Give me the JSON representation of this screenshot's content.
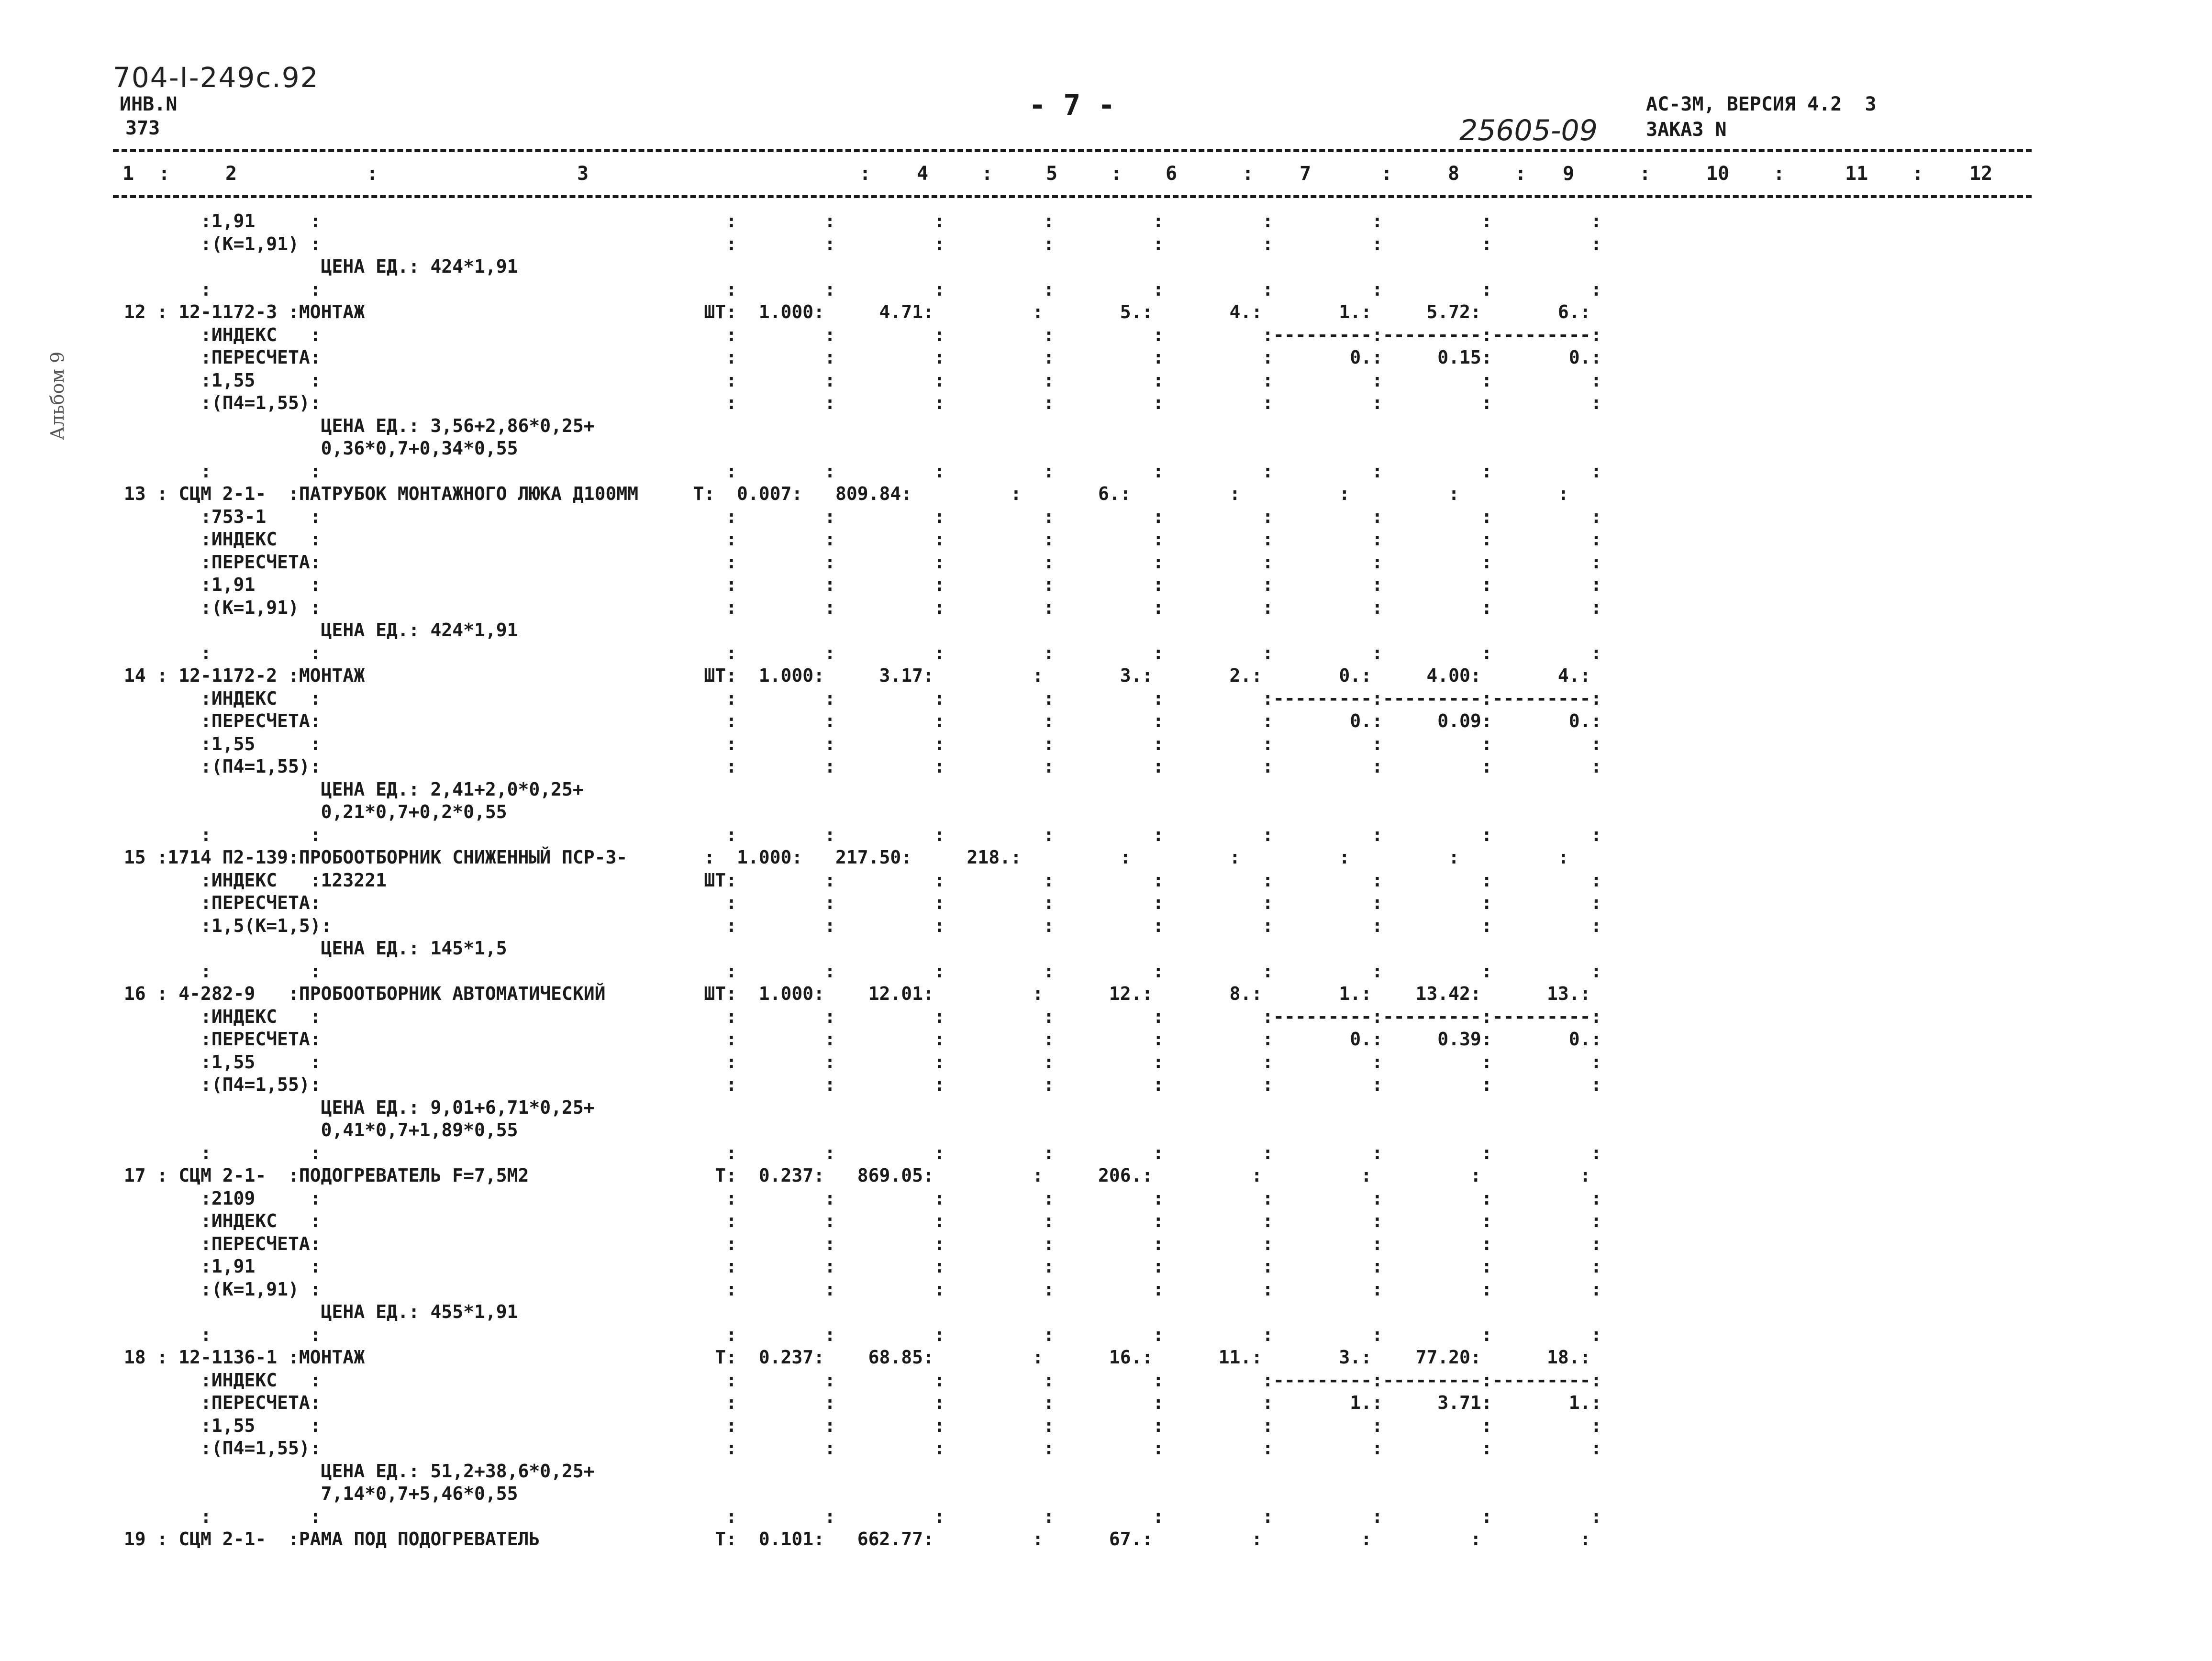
{
  "header": {
    "code": "704-I-249c.92",
    "inv_label": "ИНВ.N",
    "inv_no": "373",
    "page": "- 7 -",
    "system": "АС-3М, ВЕРСИЯ 4.2  3",
    "order_label": "ЗАКАЗ N",
    "order_no": "25605-09",
    "stamp": "Альбом 9"
  },
  "columns": [
    "1",
    ":",
    "2",
    ":",
    "3",
    ":",
    "4",
    ":",
    "5",
    ":",
    "6",
    ":",
    "7",
    ":",
    "8",
    ":",
    "9",
    ":",
    "10",
    ":",
    "11",
    ":",
    "12"
  ],
  "lines": [
    "        :1,91     :                                     :        :         :         :         :         :         :         :         :",
    "        :(К=1,91) :                                     :        :         :         :         :         :         :         :         :",
    "                   ЦЕНА ЕД.: 424*1,91",
    "        :         :                                     :        :         :         :         :         :         :         :         :",
    " 12 : 12-1172-3 :МОНТАЖ                               ШТ:  1.000:     4.71:         :       5.:       4.:       1.:     5.72:       6.:",
    "        :ИНДЕКС   :                                     :        :         :         :         :         :---------:---------:---------:",
    "        :ПЕРЕСЧЕТА:                                     :        :         :         :         :         :       0.:     0.15:       0.:",
    "        :1,55     :                                     :        :         :         :         :         :         :         :         :",
    "        :(П4=1,55):                                     :        :         :         :         :         :         :         :         :",
    "                   ЦЕНА ЕД.: 3,56+2,86*0,25+",
    "                   0,36*0,7+0,34*0,55",
    "        :         :                                     :        :         :         :         :         :         :         :         :",
    " 13 : СЦМ 2-1-  :ПАТРУБОК МОНТАЖНОГО ЛЮКА Д100ММ     Т:  0.007:   809.84:         :       6.:         :         :         :         :",
    "        :753-1    :                                     :        :         :         :         :         :         :         :         :",
    "        :ИНДЕКС   :                                     :        :         :         :         :         :         :         :         :",
    "        :ПЕРЕСЧЕТА:                                     :        :         :         :         :         :         :         :         :",
    "        :1,91     :                                     :        :         :         :         :         :         :         :         :",
    "        :(К=1,91) :                                     :        :         :         :         :         :         :         :         :",
    "                   ЦЕНА ЕД.: 424*1,91",
    "        :         :                                     :        :         :         :         :         :         :         :         :",
    " 14 : 12-1172-2 :МОНТАЖ                               ШТ:  1.000:     3.17:         :       3.:       2.:       0.:     4.00:       4.:",
    "        :ИНДЕКС   :                                     :        :         :         :         :         :---------:---------:---------:",
    "        :ПЕРЕСЧЕТА:                                     :        :         :         :         :         :       0.:     0.09:       0.:",
    "        :1,55     :                                     :        :         :         :         :         :         :         :         :",
    "        :(П4=1,55):                                     :        :         :         :         :         :         :         :         :",
    "                   ЦЕНА ЕД.: 2,41+2,0*0,25+",
    "                   0,21*0,7+0,2*0,55",
    "        :         :                                     :        :         :         :         :         :         :         :         :",
    " 15 :1714 П2-139:ПРОБООТБОРНИК СНИЖЕННЫЙ ПСР-3-       :  1.000:   217.50:     218.:         :         :         :         :         :",
    "        :ИНДЕКС   :123221                             ШТ:        :         :         :         :         :         :         :         :",
    "        :ПЕРЕСЧЕТА:                                     :        :         :         :         :         :         :         :         :",
    "        :1,5(К=1,5):                                    :        :         :         :         :         :         :         :         :",
    "                   ЦЕНА ЕД.: 145*1,5",
    "        :         :                                     :        :         :         :         :         :         :         :         :",
    " 16 : 4-282-9   :ПРОБООТБОРНИК АВТОМАТИЧЕСКИЙ         ШТ:  1.000:    12.01:         :      12.:       8.:       1.:    13.42:      13.:",
    "        :ИНДЕКС   :                                     :        :         :         :         :         :---------:---------:---------:",
    "        :ПЕРЕСЧЕТА:                                     :        :         :         :         :         :       0.:     0.39:       0.:",
    "        :1,55     :                                     :        :         :         :         :         :         :         :         :",
    "        :(П4=1,55):                                     :        :         :         :         :         :         :         :         :",
    "                   ЦЕНА ЕД.: 9,01+6,71*0,25+",
    "                   0,41*0,7+1,89*0,55",
    "        :         :                                     :        :         :         :         :         :         :         :         :",
    " 17 : СЦМ 2-1-  :ПОДОГРЕВАТЕЛЬ F=7,5М2                 Т:  0.237:   869.05:         :     206.:         :         :         :         :",
    "        :2109     :                                     :        :         :         :         :         :         :         :         :",
    "        :ИНДЕКС   :                                     :        :         :         :         :         :         :         :         :",
    "        :ПЕРЕСЧЕТА:                                     :        :         :         :         :         :         :         :         :",
    "        :1,91     :                                     :        :         :         :         :         :         :         :         :",
    "        :(К=1,91) :                                     :        :         :         :         :         :         :         :         :",
    "                   ЦЕНА ЕД.: 455*1,91",
    "        :         :                                     :        :         :         :         :         :         :         :         :",
    " 18 : 12-1136-1 :МОНТАЖ                                Т:  0.237:    68.85:         :      16.:      11.:       3.:    77.20:      18.:",
    "        :ИНДЕКС   :                                     :        :         :         :         :         :---------:---------:---------:",
    "        :ПЕРЕСЧЕТА:                                     :        :         :         :         :         :       1.:     3.71:       1.:",
    "        :1,55     :                                     :        :         :         :         :         :         :         :         :",
    "        :(П4=1,55):                                     :        :         :         :         :         :         :         :         :",
    "                   ЦЕНА ЕД.: 51,2+38,6*0,25+",
    "                   7,14*0,7+5,46*0,55",
    "        :         :                                     :        :         :         :         :         :         :         :         :",
    " 19 : СЦМ 2-1-  :РАМА ПОД ПОДОГРЕВАТЕЛЬ                Т:  0.101:   662.77:         :      67.:         :         :         :         :"
  ]
}
